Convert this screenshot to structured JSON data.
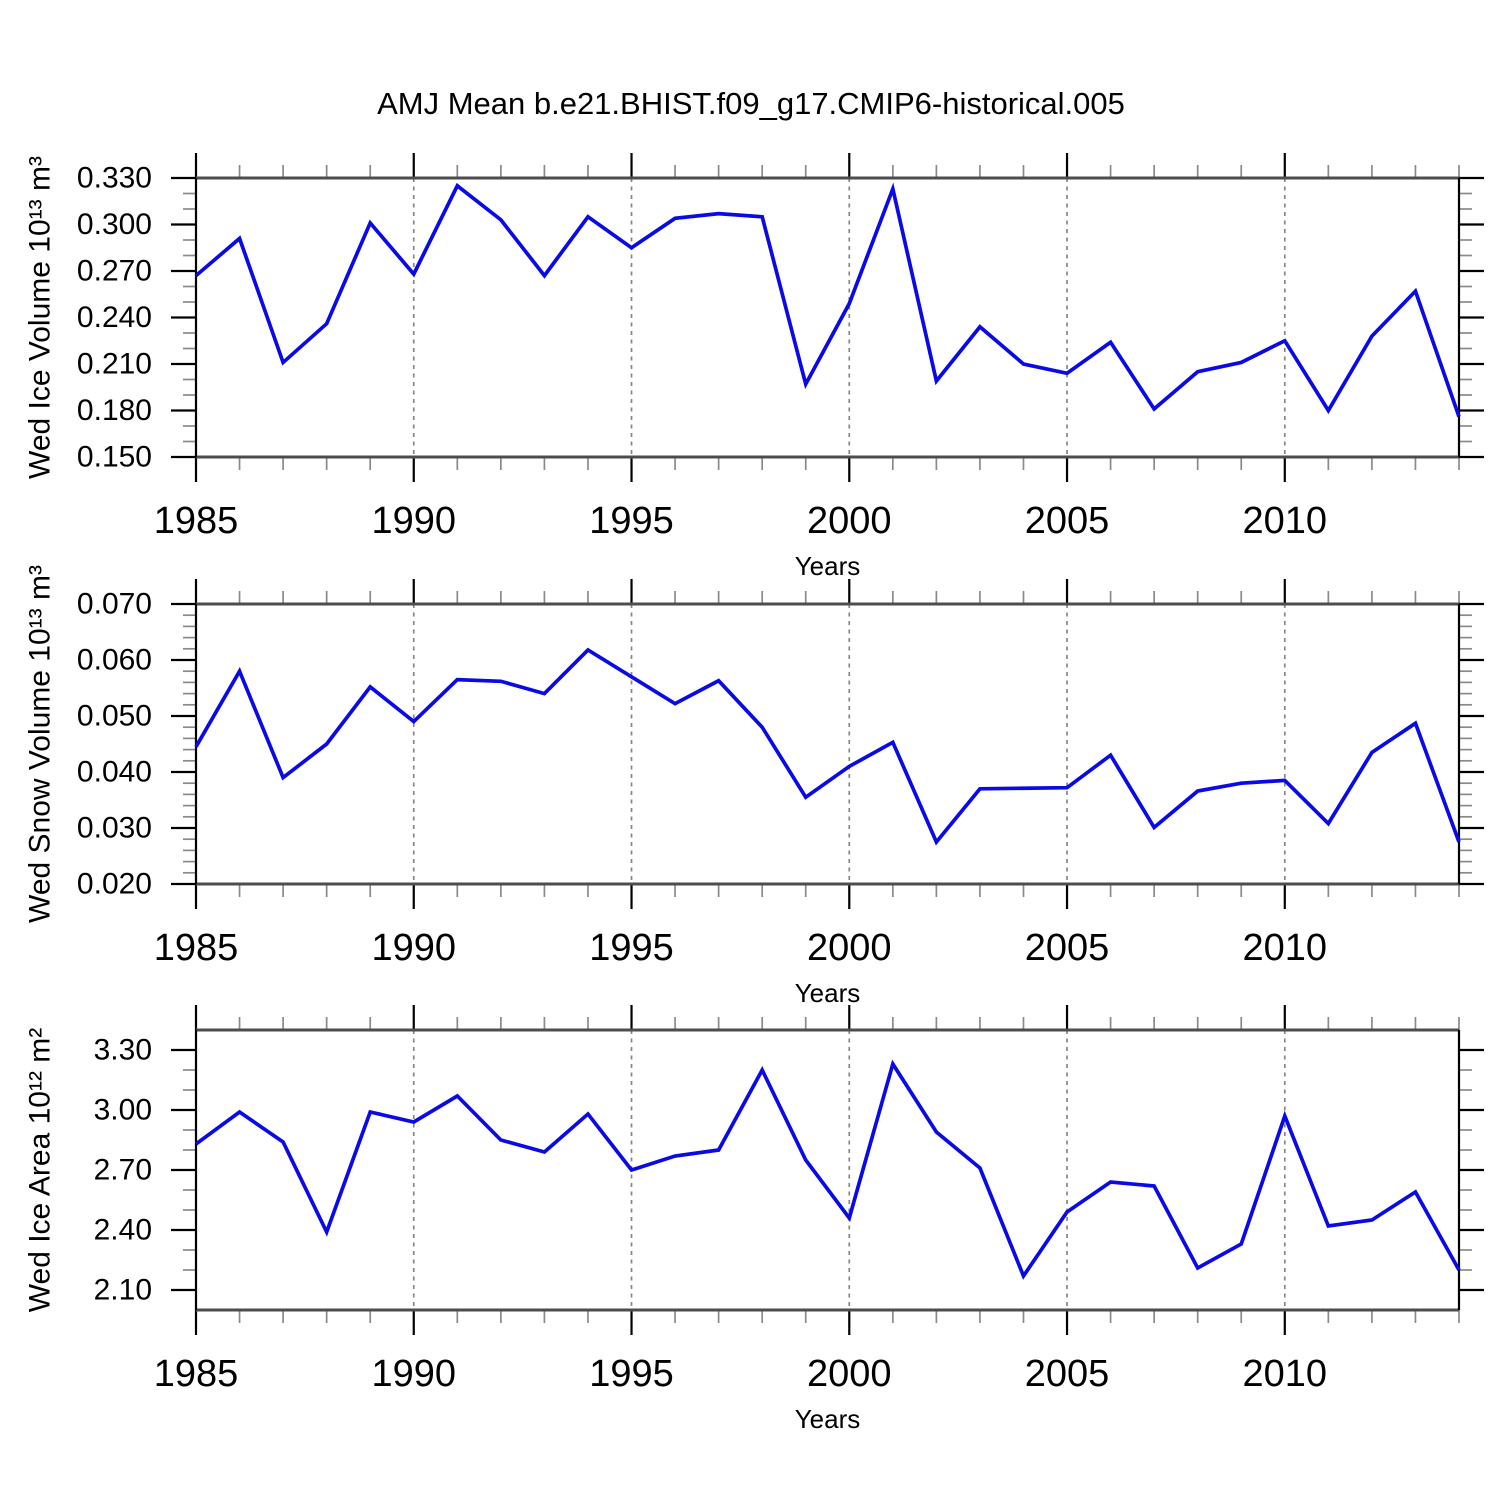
{
  "title": "AMJ Mean b.e21.BHIST.f09_g17.CMIP6-historical.005",
  "colors": {
    "line": "#0a0ae6",
    "axis_vertical": "#000000",
    "axis_horizontal": "#4d4d4d",
    "major_tick": "#000000",
    "minor_tick": "#8a8a8a",
    "grid": "#868686",
    "text": "#000000",
    "background": "#ffffff"
  },
  "chart_data": [
    {
      "id": "wed-ice-volume",
      "type": "line",
      "title": "",
      "ylabel": "Wed Ice Volume 10¹³ m³",
      "xlabel": "Years",
      "x": [
        1985,
        1986,
        1987,
        1988,
        1989,
        1990,
        1991,
        1992,
        1993,
        1994,
        1995,
        1996,
        1997,
        1998,
        1999,
        2000,
        2001,
        2002,
        2003,
        2004,
        2005,
        2006,
        2007,
        2008,
        2009,
        2010,
        2011,
        2012,
        2013,
        2014
      ],
      "values": [
        0.267,
        0.291,
        0.211,
        0.236,
        0.301,
        0.268,
        0.325,
        0.303,
        0.267,
        0.305,
        0.285,
        0.304,
        0.307,
        0.305,
        0.197,
        0.249,
        0.323,
        0.199,
        0.234,
        0.21,
        0.204,
        0.224,
        0.181,
        0.205,
        0.211,
        0.225,
        0.18,
        0.228,
        0.257,
        0.176
      ],
      "ylim": [
        0.15,
        0.33
      ],
      "ytick_values": [
        0.33,
        0.3,
        0.27,
        0.24,
        0.21,
        0.18,
        0.15
      ],
      "ytick_labels": [
        "0.330",
        "0.300",
        "0.270",
        "0.240",
        "0.210",
        "0.180",
        "0.150"
      ],
      "y_minor_step": 0.01,
      "xlim": [
        1985,
        2014
      ],
      "xtick_values": [
        1985,
        1990,
        1995,
        2000,
        2005,
        2010
      ],
      "xtick_labels": [
        "1985",
        "1990",
        "1995",
        "2000",
        "2005",
        "2010"
      ],
      "x_minor_step": 1,
      "grid_x": [
        1990,
        1995,
        2000,
        2005,
        2010
      ],
      "grid": "vertical-dashed",
      "legend": "none"
    },
    {
      "id": "wed-snow-volume",
      "type": "line",
      "title": "",
      "ylabel": "Wed Snow Volume 10¹³ m³",
      "xlabel": "Years",
      "x": [
        1985,
        1986,
        1987,
        1988,
        1989,
        1990,
        1991,
        1992,
        1993,
        1994,
        1995,
        1996,
        1997,
        1998,
        1999,
        2000,
        2001,
        2002,
        2003,
        2004,
        2005,
        2006,
        2007,
        2008,
        2009,
        2010,
        2011,
        2012,
        2013,
        2014
      ],
      "values": [
        0.0445,
        0.058,
        0.039,
        0.045,
        0.0552,
        0.049,
        0.0565,
        0.0562,
        0.054,
        0.0618,
        0.057,
        0.0522,
        0.0563,
        0.048,
        0.0355,
        0.041,
        0.0453,
        0.0275,
        0.037,
        0.0371,
        0.0372,
        0.043,
        0.0301,
        0.0366,
        0.038,
        0.0385,
        0.0308,
        0.0435,
        0.0487,
        0.0275
      ],
      "ylim": [
        0.02,
        0.07
      ],
      "ytick_values": [
        0.07,
        0.06,
        0.05,
        0.04,
        0.03,
        0.02
      ],
      "ytick_labels": [
        "0.070",
        "0.060",
        "0.050",
        "0.040",
        "0.030",
        "0.020"
      ],
      "y_minor_step": 0.002,
      "xlim": [
        1985,
        2014
      ],
      "xtick_values": [
        1985,
        1990,
        1995,
        2000,
        2005,
        2010
      ],
      "xtick_labels": [
        "1985",
        "1990",
        "1995",
        "2000",
        "2005",
        "2010"
      ],
      "x_minor_step": 1,
      "grid_x": [
        1990,
        1995,
        2000,
        2005,
        2010
      ],
      "grid": "vertical-dashed",
      "legend": "none"
    },
    {
      "id": "wed-ice-area",
      "type": "line",
      "title": "",
      "ylabel": "Wed Ice Area 10¹² m²",
      "xlabel": "Years",
      "x": [
        1985,
        1986,
        1987,
        1988,
        1989,
        1990,
        1991,
        1992,
        1993,
        1994,
        1995,
        1996,
        1997,
        1998,
        1999,
        2000,
        2001,
        2002,
        2003,
        2004,
        2005,
        2006,
        2007,
        2008,
        2009,
        2010,
        2011,
        2012,
        2013,
        2014
      ],
      "values": [
        2.83,
        2.99,
        2.84,
        2.39,
        2.99,
        2.94,
        3.07,
        2.85,
        2.79,
        2.98,
        2.7,
        2.77,
        2.8,
        3.2,
        2.75,
        2.46,
        3.23,
        2.89,
        2.71,
        2.17,
        2.49,
        2.64,
        2.62,
        2.21,
        2.33,
        2.97,
        2.42,
        2.45,
        2.59,
        2.2
      ],
      "ylim": [
        2.0,
        3.4
      ],
      "ytick_values": [
        3.3,
        3.0,
        2.7,
        2.4,
        2.1
      ],
      "ytick_labels": [
        "3.30",
        "3.00",
        "2.70",
        "2.40",
        "2.10"
      ],
      "y_minor_step": 0.1,
      "xlim": [
        1985,
        2014
      ],
      "xtick_values": [
        1985,
        1990,
        1995,
        2000,
        2005,
        2010
      ],
      "xtick_labels": [
        "1985",
        "1990",
        "1995",
        "2000",
        "2005",
        "2010"
      ],
      "x_minor_step": 1,
      "grid_x": [
        1990,
        1995,
        2000,
        2005,
        2010
      ],
      "grid": "vertical-dashed",
      "legend": "none"
    }
  ]
}
